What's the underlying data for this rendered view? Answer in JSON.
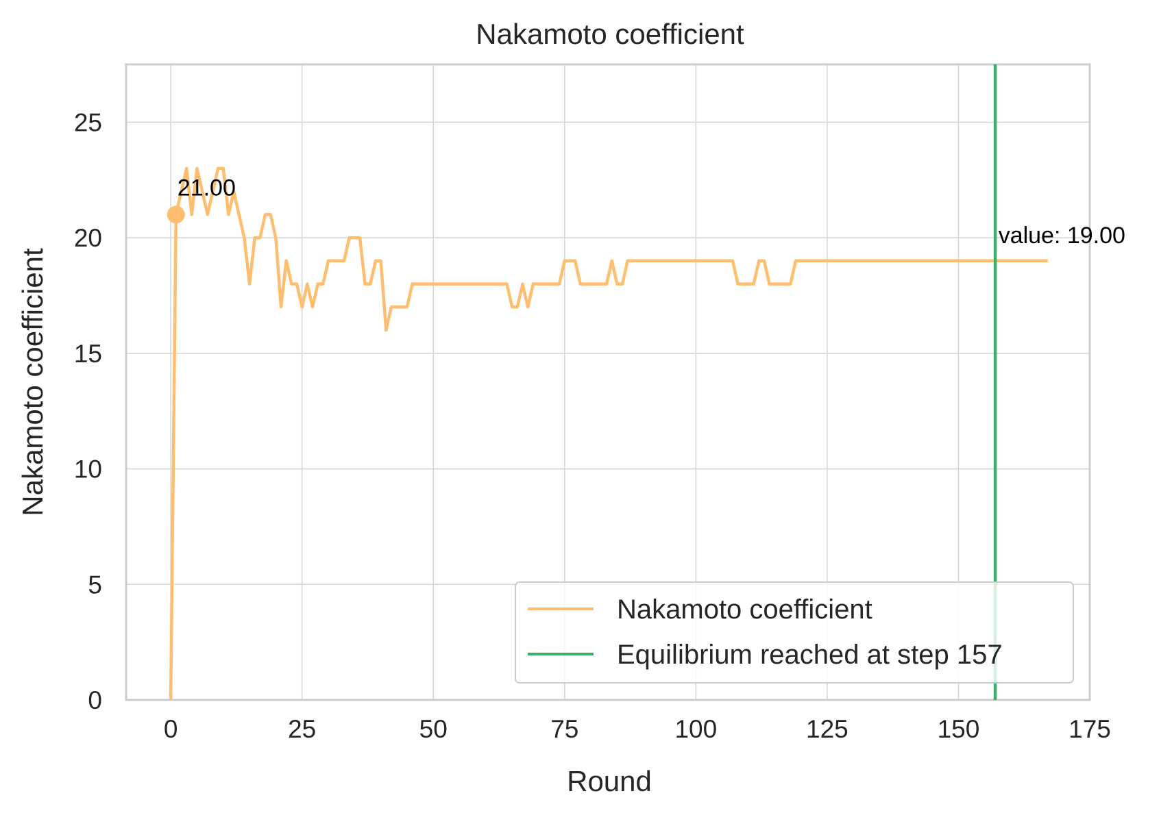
{
  "chart_data": {
    "type": "line",
    "title": "Nakamoto coefficient",
    "xlabel": "Round",
    "ylabel": "Nakamoto coefficient",
    "xlim": [
      -8.5,
      175
    ],
    "ylim": [
      0,
      27.5
    ],
    "xticks": [
      0,
      25,
      50,
      75,
      100,
      125,
      150,
      175
    ],
    "yticks": [
      0,
      5,
      10,
      15,
      20,
      25
    ],
    "grid": true,
    "legend_position": "lower-right",
    "series": [
      {
        "name": "Nakamoto coefficient",
        "color": "#fdbf6f",
        "x": [
          0,
          1,
          2,
          3,
          4,
          5,
          6,
          7,
          8,
          9,
          10,
          11,
          12,
          13,
          14,
          15,
          16,
          17,
          18,
          19,
          20,
          21,
          22,
          23,
          24,
          25,
          26,
          27,
          28,
          29,
          30,
          31,
          32,
          33,
          34,
          35,
          36,
          37,
          38,
          39,
          40,
          41,
          42,
          43,
          44,
          45,
          46,
          47,
          48,
          49,
          50,
          51,
          52,
          53,
          54,
          55,
          56,
          57,
          58,
          59,
          60,
          61,
          62,
          63,
          64,
          65,
          66,
          67,
          68,
          69,
          70,
          71,
          72,
          73,
          74,
          75,
          76,
          77,
          78,
          79,
          80,
          81,
          82,
          83,
          84,
          85,
          86,
          87,
          88,
          89,
          90,
          91,
          92,
          93,
          94,
          95,
          96,
          97,
          98,
          99,
          100,
          101,
          102,
          103,
          104,
          105,
          106,
          107,
          108,
          109,
          110,
          111,
          112,
          113,
          114,
          115,
          116,
          117,
          118,
          119,
          120,
          121,
          122,
          123,
          124,
          125,
          126,
          127,
          128,
          129,
          130,
          131,
          132,
          133,
          134,
          135,
          136,
          137,
          138,
          139,
          140,
          141,
          142,
          143,
          144,
          145,
          146,
          147,
          148,
          149,
          150,
          151,
          152,
          153,
          154,
          155,
          156,
          157,
          158,
          159,
          160,
          161,
          162,
          163,
          164,
          165,
          166,
          167
        ],
        "y": [
          0,
          21,
          22,
          23,
          21,
          23,
          22,
          21,
          22,
          23,
          23,
          21,
          22,
          21,
          20,
          18,
          20,
          20,
          21,
          21,
          20,
          17,
          19,
          18,
          18,
          17,
          18,
          17,
          18,
          18,
          19,
          19,
          19,
          19,
          20,
          20,
          20,
          18,
          18,
          19,
          19,
          16,
          17,
          17,
          17,
          17,
          18,
          18,
          18,
          18,
          18,
          18,
          18,
          18,
          18,
          18,
          18,
          18,
          18,
          18,
          18,
          18,
          18,
          18,
          18,
          17,
          17,
          18,
          17,
          18,
          18,
          18,
          18,
          18,
          18,
          19,
          19,
          19,
          18,
          18,
          18,
          18,
          18,
          18,
          19,
          18,
          18,
          19,
          19,
          19,
          19,
          19,
          19,
          19,
          19,
          19,
          19,
          19,
          19,
          19,
          19,
          19,
          19,
          19,
          19,
          19,
          19,
          19,
          18,
          18,
          18,
          18,
          19,
          19,
          18,
          18,
          18,
          18,
          18,
          19,
          19,
          19,
          19,
          19,
          19,
          19,
          19,
          19,
          19,
          19,
          19,
          19,
          19,
          19,
          19,
          19,
          19,
          19,
          19,
          19,
          19,
          19,
          19,
          19,
          19,
          19,
          19,
          19,
          19,
          19,
          19,
          19,
          19,
          19,
          19,
          19,
          19,
          19,
          19,
          19,
          19,
          19,
          19,
          19,
          19,
          19,
          19,
          19
        ]
      }
    ],
    "markers": [
      {
        "x": 1,
        "y": 21,
        "label": "21.00"
      }
    ],
    "end_annotation": {
      "x": 167,
      "y": 19,
      "label": "value: 19.00"
    },
    "vline": {
      "x": 157,
      "color": "#3aaf6a",
      "name": "Equilibrium reached at step 157"
    }
  }
}
